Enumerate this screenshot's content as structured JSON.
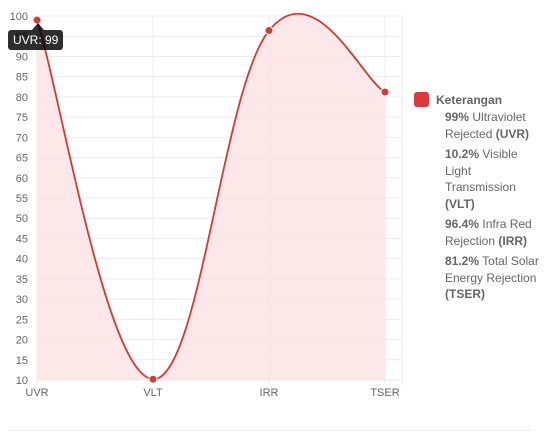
{
  "chart_data": {
    "type": "area",
    "categories": [
      "UVR",
      "VLT",
      "IRR",
      "TSER"
    ],
    "series": [
      {
        "values": [
          99,
          10.2,
          96.4,
          81.2
        ]
      }
    ],
    "yticks": [
      10,
      15,
      20,
      25,
      30,
      35,
      40,
      45,
      50,
      55,
      60,
      65,
      70,
      75,
      80,
      85,
      90,
      95,
      100
    ],
    "ylim": [
      10,
      100
    ],
    "grid": true,
    "legend_position": "right",
    "title": "",
    "xlabel": "",
    "ylabel": ""
  },
  "colors": {
    "line": "#d13a3a",
    "fill": "#fbe4e4",
    "legend_swatch": "#d93a3a"
  },
  "legend": {
    "title": "Keterangan",
    "items": [
      {
        "value": "99%",
        "pre": "Ultraviolet Rejected",
        "code": "(UVR)"
      },
      {
        "value": "10.2%",
        "pre": "Visible Light Transmission",
        "code": "(VLT)"
      },
      {
        "value": "96.4%",
        "pre": "Infra Red Rejection",
        "code": "(IRR)"
      },
      {
        "value": "81.2%",
        "pre": "Total Solar Energy Rejection",
        "code": "(TSER)"
      }
    ]
  },
  "tooltip": {
    "text": "UVR: 99"
  }
}
